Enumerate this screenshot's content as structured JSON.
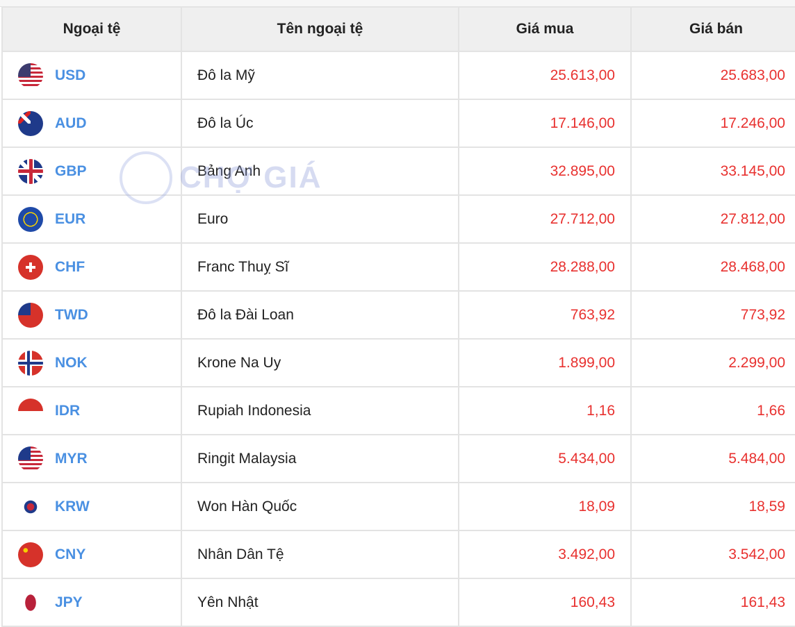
{
  "table": {
    "headers": [
      "Ngoại tệ",
      "Tên ngoại tệ",
      "Giá mua",
      "Giá bán"
    ],
    "rows": [
      {
        "code": "USD",
        "flag": "us-flag-icon",
        "name": "Đô la Mỹ",
        "buy": "25.613,00",
        "sell": "25.683,00"
      },
      {
        "code": "AUD",
        "flag": "au-flag-icon",
        "name": "Đô la Úc",
        "buy": "17.146,00",
        "sell": "17.246,00"
      },
      {
        "code": "GBP",
        "flag": "gb-flag-icon",
        "name": "Bảng Anh",
        "buy": "32.895,00",
        "sell": "33.145,00"
      },
      {
        "code": "EUR",
        "flag": "eu-flag-icon",
        "name": "Euro",
        "buy": "27.712,00",
        "sell": "27.812,00"
      },
      {
        "code": "CHF",
        "flag": "ch-flag-icon",
        "name": "Franc Thuỵ Sĩ",
        "buy": "28.288,00",
        "sell": "28.468,00"
      },
      {
        "code": "TWD",
        "flag": "tw-flag-icon",
        "name": "Đô la Đài Loan",
        "buy": "763,92",
        "sell": "773,92"
      },
      {
        "code": "NOK",
        "flag": "no-flag-icon",
        "name": "Krone Na Uy",
        "buy": "1.899,00",
        "sell": "2.299,00"
      },
      {
        "code": "IDR",
        "flag": "id-flag-icon",
        "name": "Rupiah Indonesia",
        "buy": "1,16",
        "sell": "1,66"
      },
      {
        "code": "MYR",
        "flag": "my-flag-icon",
        "name": "Ringit Malaysia",
        "buy": "5.434,00",
        "sell": "5.484,00"
      },
      {
        "code": "KRW",
        "flag": "kr-flag-icon",
        "name": "Won Hàn Quốc",
        "buy": "18,09",
        "sell": "18,59"
      },
      {
        "code": "CNY",
        "flag": "cn-flag-icon",
        "name": "Nhân Dân Tệ",
        "buy": "3.492,00",
        "sell": "3.542,00"
      },
      {
        "code": "JPY",
        "flag": "jp-flag-icon",
        "name": "Yên Nhật",
        "buy": "160,43",
        "sell": "161,43"
      }
    ]
  },
  "watermark": {
    "text": "CHỢ GIÁ"
  },
  "colors": {
    "code": "#4a90e2",
    "price": "#e8312f",
    "header_bg": "#efefef"
  }
}
